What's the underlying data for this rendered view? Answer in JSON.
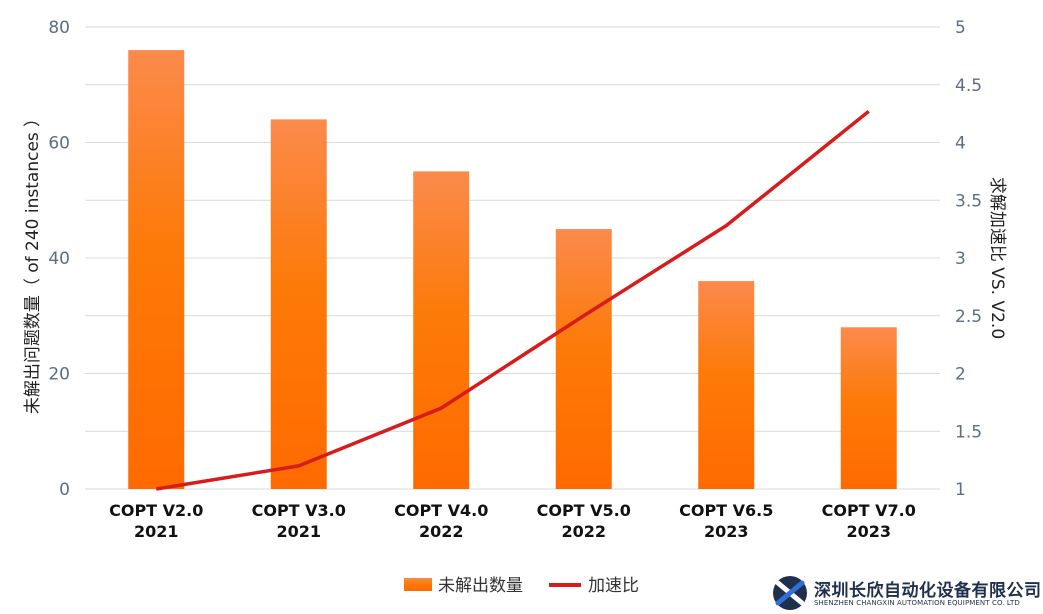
{
  "chart_data": {
    "type": "bar",
    "categories": [
      {
        "line1": "COPT V2.0",
        "line2": "2021"
      },
      {
        "line1": "COPT V3.0",
        "line2": "2021"
      },
      {
        "line1": "COPT V4.0",
        "line2": "2022"
      },
      {
        "line1": "COPT V5.0",
        "line2": "2022"
      },
      {
        "line1": "COPT V6.5",
        "line2": "2023"
      },
      {
        "line1": "COPT V7.0",
        "line2": "2023"
      }
    ],
    "series": [
      {
        "name": "未解出数量",
        "type": "bar",
        "axis": "left",
        "values": [
          76,
          64,
          55,
          45,
          36,
          28
        ]
      },
      {
        "name": "加速比",
        "type": "line",
        "axis": "right",
        "values": [
          1.0,
          1.2,
          1.7,
          2.5,
          3.28,
          4.27
        ]
      }
    ],
    "ylabel": "未解出问题数量（ of 240 instances ）",
    "y2label": "求解加速比 VS. V2.0",
    "ylim": [
      0,
      80
    ],
    "y2lim": [
      1,
      5
    ],
    "yticks": [
      "0",
      "20",
      "40",
      "60",
      "80"
    ],
    "y2ticks": [
      "1",
      "1.5",
      "2",
      "2.5",
      "3",
      "3.5",
      "4",
      "4.5",
      "5"
    ],
    "grid": true,
    "legend_position": "bottom",
    "colors": {
      "bar_top": "#fb8a4c",
      "bar_mid": "#fd7a08",
      "bar_bottom": "#ff6a00",
      "line": "#d61c1c",
      "grid": "#d9d9d9",
      "tick": "#5a6e85"
    }
  },
  "logo": {
    "name_cn": "深圳长欣自动化设备有限公司",
    "name_en": "SHENZHEN CHANGXIN AUTOMATION EQUIPMENT CO. LTD"
  }
}
